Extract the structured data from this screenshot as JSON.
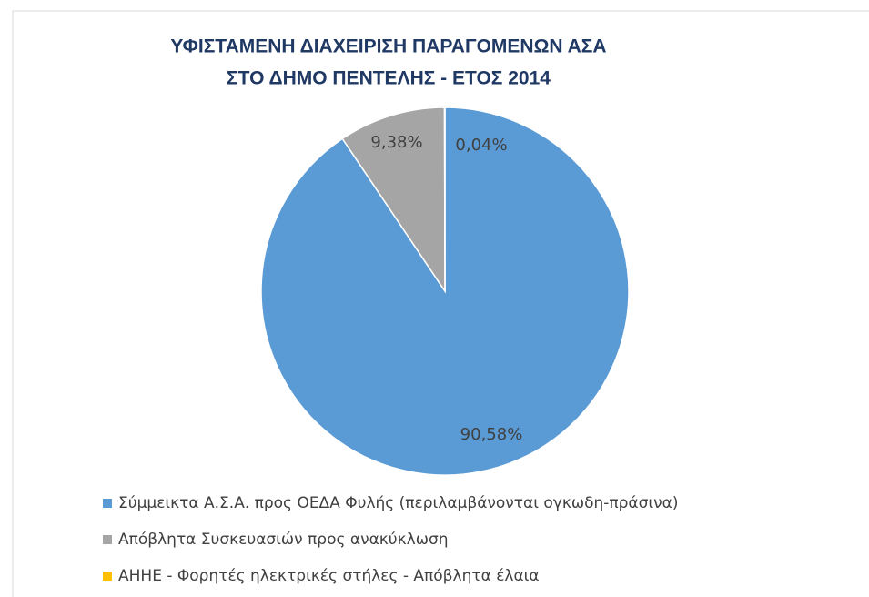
{
  "chart_data": {
    "type": "pie",
    "title": [
      "ΥΦΙΣΤΑΜΕΝΗ ΔΙΑΧΕΙΡΙΣΗ ΠΑΡΑΓΟΜΕΝΩΝ ΑΣΑ",
      "ΣΤΟ ΔΗΜΟ ΠΕΝΤΕΛΗΣ -  ΕΤΟΣ 2014"
    ],
    "categories": [
      "Σύμμεικτα Α.Σ.Α. προς ΟΕΔΑ Φυλής (περιλαμβάνονται ογκωδη-πράσινα)",
      "Απόβλητα Συσκευασιών προς ανακύκλωση",
      "ΑΗΗΕ - Φορητές ηλεκτρικές στήλες -  Απόβλητα έλαια"
    ],
    "values": [
      90.58,
      9.38,
      0.04
    ],
    "value_labels": [
      "90,58%",
      "9,38%",
      "0,04%"
    ],
    "colors": [
      "#5b9bd5",
      "#a5a5a5",
      "#ffc000"
    ],
    "legend": "bottom"
  }
}
